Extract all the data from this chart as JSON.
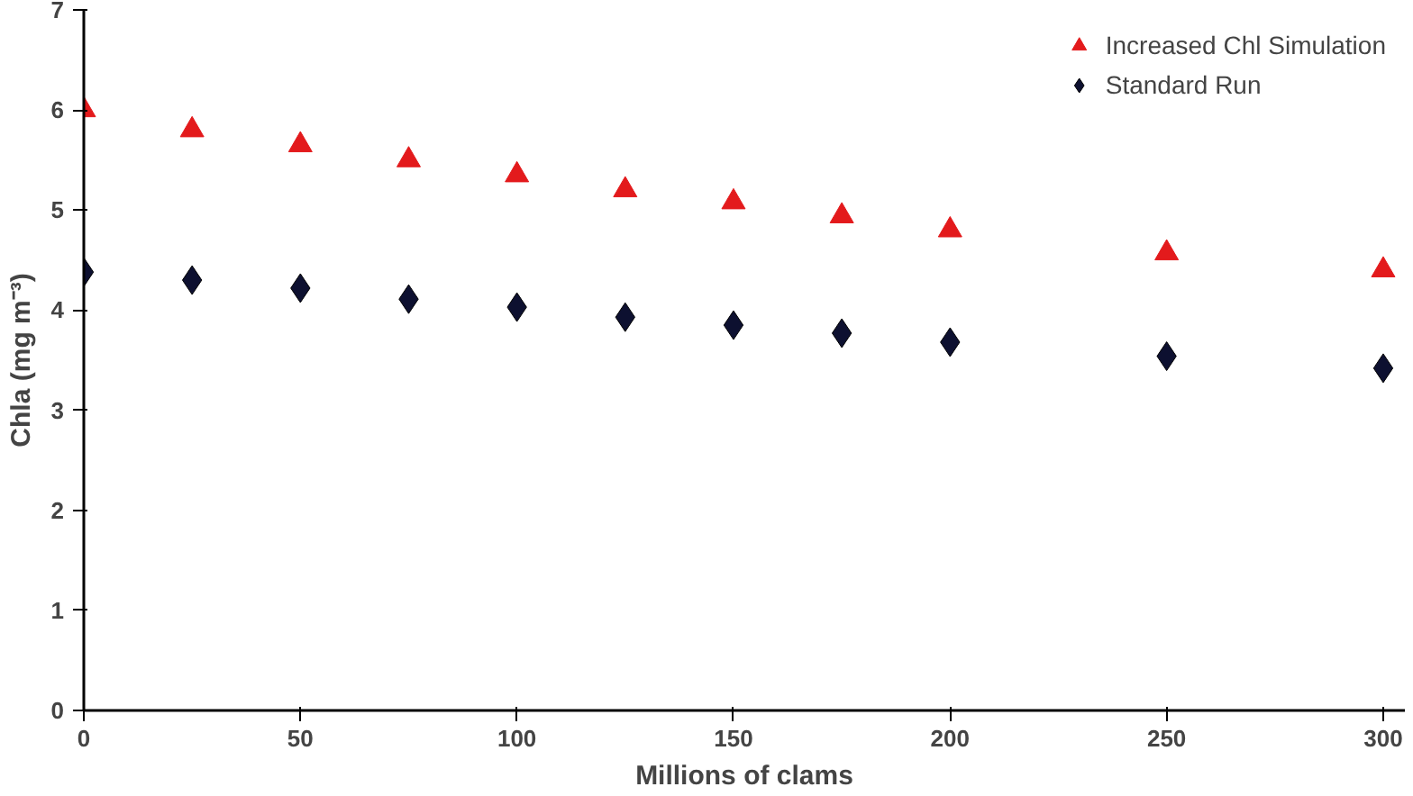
{
  "chart_data": {
    "type": "scatter",
    "xlabel": "Millions of clams",
    "ylabel": "Chla (mg m⁻³)",
    "x": [
      0,
      25,
      50,
      75,
      100,
      125,
      150,
      175,
      200,
      250,
      300
    ],
    "series": [
      {
        "name": "Increased Chl Simulation",
        "color": "#e31a1c",
        "marker": "triangle",
        "values": [
          6.0,
          5.8,
          5.65,
          5.5,
          5.35,
          5.2,
          5.08,
          4.94,
          4.8,
          4.57,
          4.4
        ]
      },
      {
        "name": "Standard Run",
        "color": "#0d1030",
        "marker": "diamond",
        "values": [
          4.38,
          4.3,
          4.22,
          4.11,
          4.03,
          3.93,
          3.85,
          3.77,
          3.68,
          3.54,
          3.42
        ]
      }
    ],
    "xlim": [
      0,
      305
    ],
    "ylim": [
      0,
      7
    ],
    "xticks": [
      0,
      50,
      100,
      150,
      200,
      250,
      300
    ],
    "yticks": [
      0,
      1,
      2,
      3,
      4,
      5,
      6,
      7
    ],
    "grid": false,
    "legend": "top right"
  }
}
